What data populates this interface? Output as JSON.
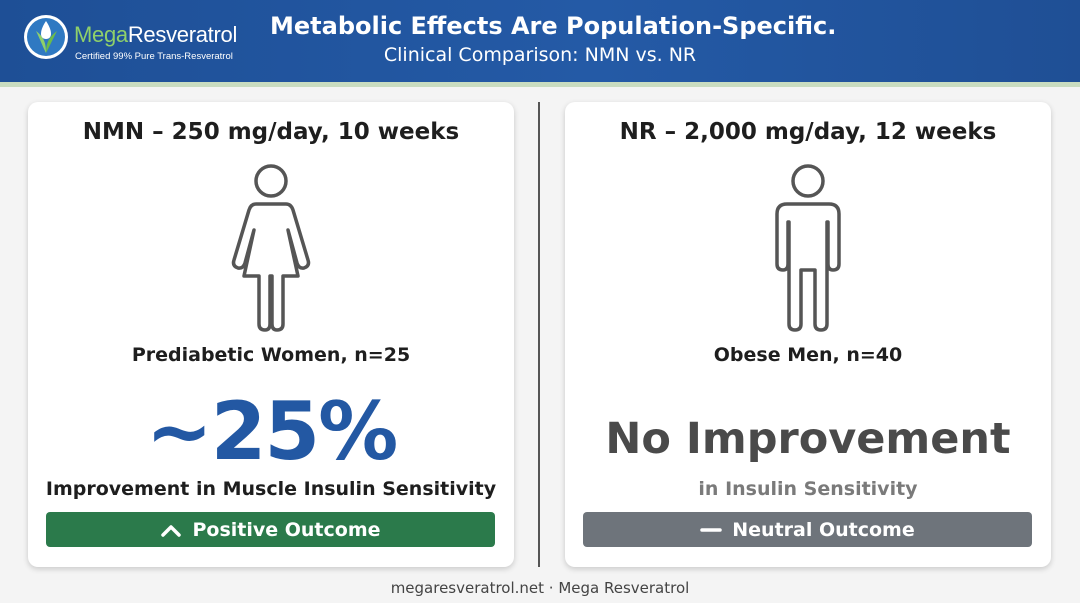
{
  "brand": {
    "name_prefix": "Mega",
    "name_suffix": "Resveratrol",
    "tagline": "Certified 99% Pure Trans-Resveratrol",
    "icon": "leaf-droplet-logo-icon",
    "colors": {
      "header": "#245aa6",
      "accent_green": "#8fd06a"
    }
  },
  "header": {
    "title": "Metabolic Effects Are Population-Specific.",
    "subtitle": "Clinical Comparison: NMN vs. NR"
  },
  "left_panel": {
    "title": "NMN – 250 mg/day, 10 weeks",
    "figure_icon": "woman-icon",
    "population": "Prediabetic Women, n=25",
    "value": "~25%",
    "effect": "Improvement in Muscle Insulin Sensitivity",
    "outcome": {
      "label": "Positive Outcome",
      "icon": "chevron-up-icon",
      "color": "#2b7a4b"
    },
    "value_color": "#2358a3"
  },
  "right_panel": {
    "title": "NR – 2,000 mg/day, 12 weeks",
    "figure_icon": "man-icon",
    "population": "Obese Men, n=40",
    "value": "No Improvement",
    "effect": "in Insulin Sensitivity",
    "outcome": {
      "label": "Neutral Outcome",
      "icon": "minus-icon",
      "color": "#6e747b"
    }
  },
  "footer": {
    "text": "megaresveratrol.net · Mega Resveratrol"
  }
}
